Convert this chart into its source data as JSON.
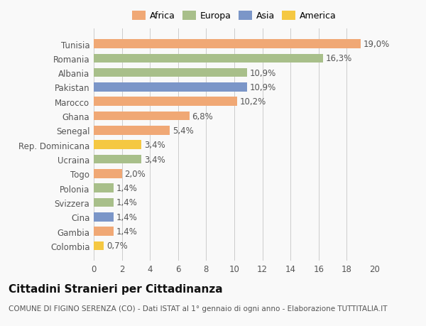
{
  "categories": [
    "Tunisia",
    "Romania",
    "Albania",
    "Pakistan",
    "Marocco",
    "Ghana",
    "Senegal",
    "Rep. Dominicana",
    "Ucraina",
    "Togo",
    "Polonia",
    "Svizzera",
    "Cina",
    "Gambia",
    "Colombia"
  ],
  "values": [
    19.0,
    16.3,
    10.9,
    10.9,
    10.2,
    6.8,
    5.4,
    3.4,
    3.4,
    2.0,
    1.4,
    1.4,
    1.4,
    1.4,
    0.7
  ],
  "labels": [
    "19,0%",
    "16,3%",
    "10,9%",
    "10,9%",
    "10,2%",
    "6,8%",
    "5,4%",
    "3,4%",
    "3,4%",
    "2,0%",
    "1,4%",
    "1,4%",
    "1,4%",
    "1,4%",
    "0,7%"
  ],
  "colors": [
    "#f0a875",
    "#a8bf8a",
    "#a8bf8a",
    "#7b96c8",
    "#f0a875",
    "#f0a875",
    "#f0a875",
    "#f5c842",
    "#a8bf8a",
    "#f0a875",
    "#a8bf8a",
    "#a8bf8a",
    "#7b96c8",
    "#f0a875",
    "#f5c842"
  ],
  "legend_labels": [
    "Africa",
    "Europa",
    "Asia",
    "America"
  ],
  "legend_colors": [
    "#f0a875",
    "#a8bf8a",
    "#7b96c8",
    "#f5c842"
  ],
  "xlim": [
    0,
    20
  ],
  "xticks": [
    0,
    2,
    4,
    6,
    8,
    10,
    12,
    14,
    16,
    18,
    20
  ],
  "title": "Cittadini Stranieri per Cittadinanza",
  "subtitle": "COMUNE DI FIGINO SERENZA (CO) - Dati ISTAT al 1° gennaio di ogni anno - Elaborazione TUTTITALIA.IT",
  "background_color": "#f9f9f9",
  "bar_height": 0.62,
  "grid_color": "#cccccc",
  "label_fontsize": 8.5,
  "tick_fontsize": 8.5,
  "title_fontsize": 11,
  "subtitle_fontsize": 7.5
}
